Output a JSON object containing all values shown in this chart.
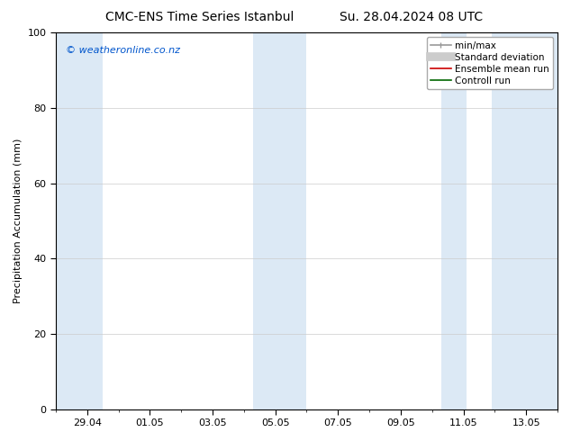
{
  "title_left": "CMC-ENS Time Series Istanbul",
  "title_right": "Su. 28.04.2024 08 UTC",
  "ylabel": "Precipitation Accumulation (mm)",
  "ylim": [
    0,
    100
  ],
  "yticks": [
    0,
    20,
    40,
    60,
    80,
    100
  ],
  "xtick_labels": [
    "29.04",
    "01.05",
    "03.05",
    "05.05",
    "07.05",
    "09.05",
    "11.05",
    "13.05"
  ],
  "xtick_positions": [
    1,
    3,
    5,
    7,
    9,
    11,
    13,
    15
  ],
  "total_days": 16,
  "xlim": [
    0,
    16
  ],
  "bg_color": "#ffffff",
  "plot_bg_color": "#ffffff",
  "shaded_bands": [
    [
      0.0,
      1.5
    ],
    [
      6.4,
      8.1
    ],
    [
      12.4,
      14.1
    ],
    [
      14.1,
      16.0
    ]
  ],
  "band_color": "#dce9f5",
  "watermark_text": "© weatheronline.co.nz",
  "watermark_color": "#0055cc",
  "legend_items": [
    {
      "label": "min/max",
      "color": "#999999",
      "lw": 1.2
    },
    {
      "label": "Standard deviation",
      "color": "#cccccc",
      "lw": 7
    },
    {
      "label": "Ensemble mean run",
      "color": "#cc0000",
      "lw": 1.2
    },
    {
      "label": "Controll run",
      "color": "#006600",
      "lw": 1.2
    }
  ],
  "title_fontsize": 10,
  "axis_label_fontsize": 8,
  "tick_fontsize": 8,
  "legend_fontsize": 7.5,
  "watermark_fontsize": 8
}
